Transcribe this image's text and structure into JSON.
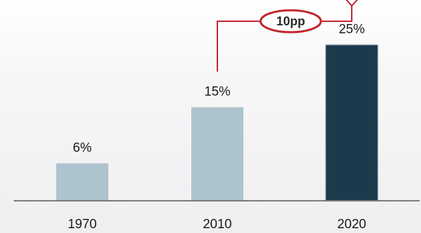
{
  "chart_data": {
    "type": "bar",
    "categories": [
      "1970",
      "2010",
      "2020"
    ],
    "values": [
      6,
      15,
      25
    ],
    "value_labels": [
      "6%",
      "15%",
      "25%"
    ],
    "ylim": [
      0,
      30
    ],
    "grid": false,
    "title": "",
    "xlabel": "",
    "ylabel": "",
    "colors": {
      "bar": "#adc3cd",
      "highlight_bar": "#1b3a4b",
      "axis": "#7a7a7a",
      "annotation": "#c0262d"
    },
    "highlight_index": 2,
    "annotation": {
      "label": "10pp",
      "from_index": 1,
      "to_index": 2
    }
  }
}
